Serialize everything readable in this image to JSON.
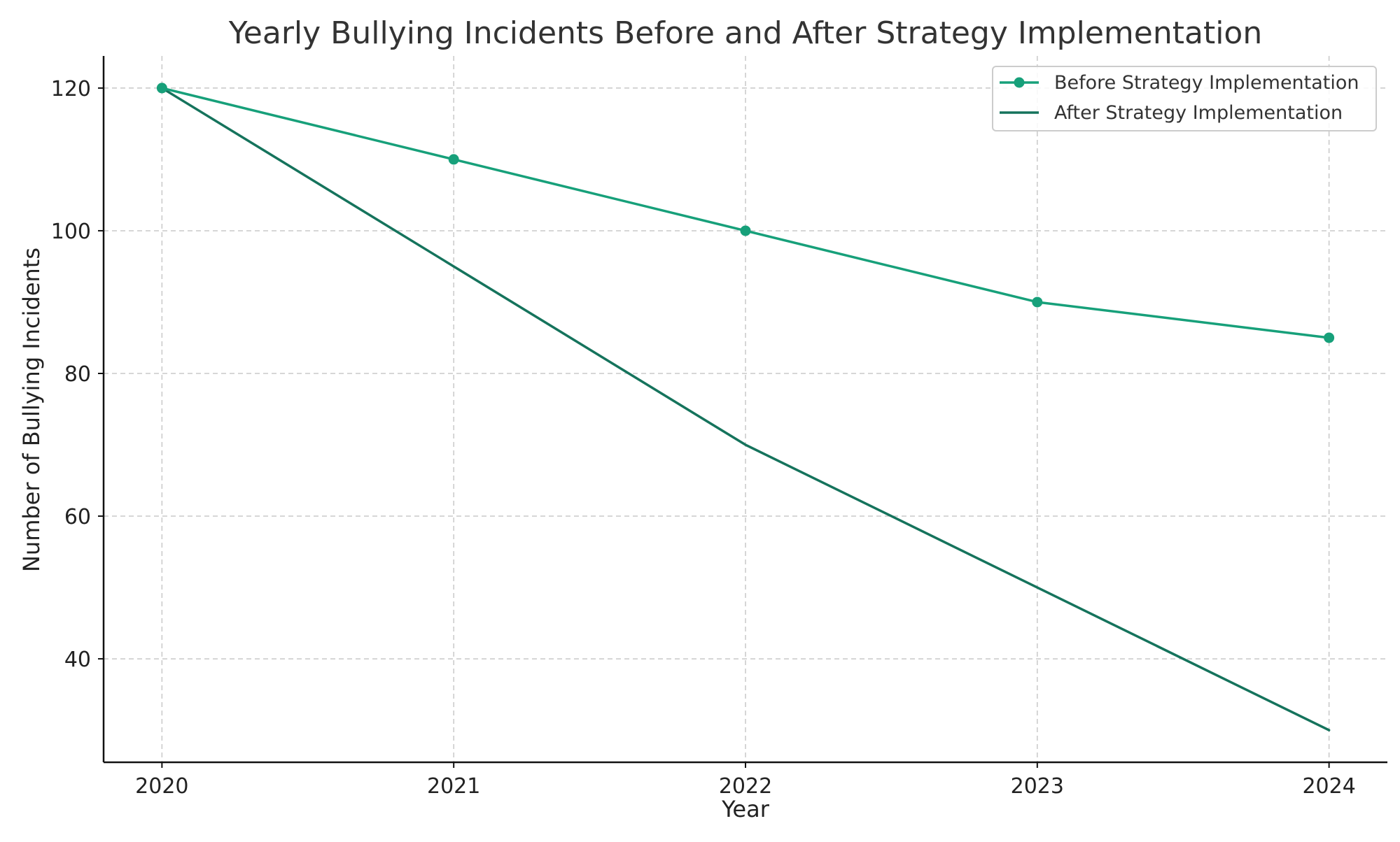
{
  "chart_data": {
    "type": "line",
    "title": "Yearly Bullying Incidents Before and After Strategy Implementation",
    "xlabel": "Year",
    "ylabel": "Number of Bullying Incidents",
    "x": [
      "2020",
      "2021",
      "2022",
      "2023",
      "2024"
    ],
    "xlim": [
      2019.8,
      2024.2
    ],
    "ylim": [
      25.5,
      124.5
    ],
    "yticks": [
      40,
      60,
      80,
      100,
      120
    ],
    "grid": true,
    "legend_position": "top-right",
    "series": [
      {
        "name": "Before Strategy Implementation",
        "values": [
          120,
          110,
          100,
          90,
          85
        ],
        "color": "#17a07a",
        "markers": true
      },
      {
        "name": "After Strategy Implementation",
        "values": [
          120,
          95,
          70,
          50,
          30
        ],
        "color": "#15735c",
        "markers": false
      }
    ]
  }
}
